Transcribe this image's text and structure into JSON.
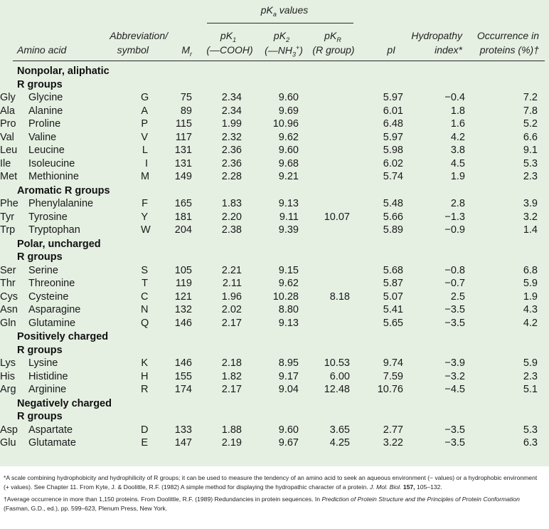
{
  "header": {
    "pka_values": "pKa values",
    "amino_acid": "Amino acid",
    "abbreviation_line1": "Abbreviation/",
    "abbreviation_line2": "symbol",
    "mr": "Mr",
    "pk1_line1": "pK1",
    "pk1_line2": "(—COOH)",
    "pk2_line1": "pK2",
    "pk2_line2": "(—NH3+)",
    "pkr_line1": "pKR",
    "pkr_line2": "(R group)",
    "pi": "pI",
    "hydropathy_line1": "Hydropathy",
    "hydropathy_line2": "index*",
    "occurrence_line1": "Occurrence in",
    "occurrence_line2": "proteins (%)†"
  },
  "groups": [
    {
      "title_lines": [
        "Nonpolar, aliphatic",
        "R groups"
      ],
      "rows": [
        {
          "name": "Glycine",
          "abbr": "Gly",
          "sym": "G",
          "mr": "75",
          "pk1": "2.34",
          "pk2": "9.60",
          "pkr": "",
          "pi": "5.97",
          "hyd": "−0.4",
          "occ": "7.2"
        },
        {
          "name": "Alanine",
          "abbr": "Ala",
          "sym": "A",
          "mr": "89",
          "pk1": "2.34",
          "pk2": "9.69",
          "pkr": "",
          "pi": "6.01",
          "hyd": "1.8",
          "occ": "7.8"
        },
        {
          "name": "Proline",
          "abbr": "Pro",
          "sym": "P",
          "mr": "115",
          "pk1": "1.99",
          "pk2": "10.96",
          "pkr": "",
          "pi": "6.48",
          "hyd": "1.6",
          "occ": "5.2"
        },
        {
          "name": "Valine",
          "abbr": "Val",
          "sym": "V",
          "mr": "117",
          "pk1": "2.32",
          "pk2": "9.62",
          "pkr": "",
          "pi": "5.97",
          "hyd": "4.2",
          "occ": "6.6"
        },
        {
          "name": "Leucine",
          "abbr": "Leu",
          "sym": "L",
          "mr": "131",
          "pk1": "2.36",
          "pk2": "9.60",
          "pkr": "",
          "pi": "5.98",
          "hyd": "3.8",
          "occ": "9.1"
        },
        {
          "name": "Isoleucine",
          "abbr": "Ile",
          "sym": "I",
          "mr": "131",
          "pk1": "2.36",
          "pk2": "9.68",
          "pkr": "",
          "pi": "6.02",
          "hyd": "4.5",
          "occ": "5.3"
        },
        {
          "name": "Methionine",
          "abbr": "Met",
          "sym": "M",
          "mr": "149",
          "pk1": "2.28",
          "pk2": "9.21",
          "pkr": "",
          "pi": "5.74",
          "hyd": "1.9",
          "occ": "2.3"
        }
      ]
    },
    {
      "title_lines": [
        "Aromatic R groups"
      ],
      "rows": [
        {
          "name": "Phenylalanine",
          "abbr": "Phe",
          "sym": "F",
          "mr": "165",
          "pk1": "1.83",
          "pk2": "9.13",
          "pkr": "",
          "pi": "5.48",
          "hyd": "2.8",
          "occ": "3.9"
        },
        {
          "name": "Tyrosine",
          "abbr": "Tyr",
          "sym": "Y",
          "mr": "181",
          "pk1": "2.20",
          "pk2": "9.11",
          "pkr": "10.07",
          "pi": "5.66",
          "hyd": "−1.3",
          "occ": "3.2"
        },
        {
          "name": "Tryptophan",
          "abbr": "Trp",
          "sym": "W",
          "mr": "204",
          "pk1": "2.38",
          "pk2": "9.39",
          "pkr": "",
          "pi": "5.89",
          "hyd": "−0.9",
          "occ": "1.4"
        }
      ]
    },
    {
      "title_lines": [
        "Polar, uncharged",
        "R groups"
      ],
      "rows": [
        {
          "name": "Serine",
          "abbr": "Ser",
          "sym": "S",
          "mr": "105",
          "pk1": "2.21",
          "pk2": "9.15",
          "pkr": "",
          "pi": "5.68",
          "hyd": "−0.8",
          "occ": "6.8"
        },
        {
          "name": "Threonine",
          "abbr": "Thr",
          "sym": "T",
          "mr": "119",
          "pk1": "2.11",
          "pk2": "9.62",
          "pkr": "",
          "pi": "5.87",
          "hyd": "−0.7",
          "occ": "5.9"
        },
        {
          "name": "Cysteine",
          "abbr": "Cys",
          "sym": "C",
          "mr": "121",
          "pk1": "1.96",
          "pk2": "10.28",
          "pkr": "8.18",
          "pi": "5.07",
          "hyd": "2.5",
          "occ": "1.9"
        },
        {
          "name": "Asparagine",
          "abbr": "Asn",
          "sym": "N",
          "mr": "132",
          "pk1": "2.02",
          "pk2": "8.80",
          "pkr": "",
          "pi": "5.41",
          "hyd": "−3.5",
          "occ": "4.3"
        },
        {
          "name": "Glutamine",
          "abbr": "Gln",
          "sym": "Q",
          "mr": "146",
          "pk1": "2.17",
          "pk2": "9.13",
          "pkr": "",
          "pi": "5.65",
          "hyd": "−3.5",
          "occ": "4.2"
        }
      ]
    },
    {
      "title_lines": [
        "Positively charged",
        "R groups"
      ],
      "rows": [
        {
          "name": "Lysine",
          "abbr": "Lys",
          "sym": "K",
          "mr": "146",
          "pk1": "2.18",
          "pk2": "8.95",
          "pkr": "10.53",
          "pi": "9.74",
          "hyd": "−3.9",
          "occ": "5.9"
        },
        {
          "name": "Histidine",
          "abbr": "His",
          "sym": "H",
          "mr": "155",
          "pk1": "1.82",
          "pk2": "9.17",
          "pkr": "6.00",
          "pi": "7.59",
          "hyd": "−3.2",
          "occ": "2.3"
        },
        {
          "name": "Arginine",
          "abbr": "Arg",
          "sym": "R",
          "mr": "174",
          "pk1": "2.17",
          "pk2": "9.04",
          "pkr": "12.48",
          "pi": "10.76",
          "hyd": "−4.5",
          "occ": "5.1"
        }
      ]
    },
    {
      "title_lines": [
        "Negatively charged",
        "R groups"
      ],
      "rows": [
        {
          "name": "Aspartate",
          "abbr": "Asp",
          "sym": "D",
          "mr": "133",
          "pk1": "1.88",
          "pk2": "9.60",
          "pkr": "3.65",
          "pi": "2.77",
          "hyd": "−3.5",
          "occ": "5.3"
        },
        {
          "name": "Glutamate",
          "abbr": "Glu",
          "sym": "E",
          "mr": "147",
          "pk1": "2.19",
          "pk2": "9.67",
          "pkr": "4.25",
          "pi": "3.22",
          "hyd": "−3.5",
          "occ": "6.3"
        }
      ]
    }
  ],
  "footnotes": {
    "note1_a": "*A scale combining hydrophobicity and hydrophilicity of R groups; it can be used to measure the tendency of an amino acid to seek an aqueous environment (− values) or a hydrophobic environment (+ values). See Chapter 11. From Kyte, J. & Doolittle, R.F. (1982) A simple method for displaying the hydropathic character of a protein.",
    "note1_journal": "J. Mol. Biol.",
    "note1_volume": "157,",
    "note1_pages": "105–132.",
    "note2_a": "†Average occurrence in more than 1,150 proteins. From Doolittle, R.F. (1989) Redundancies in protein sequences. In",
    "note2_book": "Prediction of Protein Structure and the Principles of Protein Conformation",
    "note2_b": "(Fasman, G.D., ed.), pp. 599–623, Plenum Press, New York."
  }
}
